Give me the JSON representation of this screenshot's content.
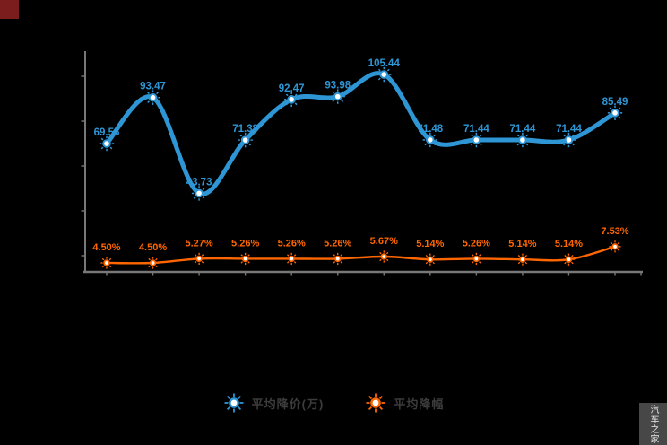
{
  "legend": {
    "items": [
      {
        "label": "平均降价(万)",
        "color": "#2E96D5"
      },
      {
        "label": "平均降幅",
        "color": "#FF6600"
      }
    ]
  },
  "watermark": {
    "text": "汽车之家"
  },
  "chart_data": {
    "type": "line",
    "x": [
      1,
      2,
      3,
      4,
      5,
      6,
      7,
      8,
      9,
      10,
      11,
      12
    ],
    "x_tick_labels": [],
    "grid": false,
    "legend_position": "bottom",
    "background": "#000000",
    "axis_color": "#787878",
    "series": [
      {
        "name": "平均降价(万)",
        "color": "#2E96D5",
        "values": [
          69.56,
          93.47,
          43.73,
          71.38,
          92.47,
          93.98,
          105.44,
          71.48,
          71.44,
          71.44,
          71.44,
          85.49
        ],
        "labels": [
          "69.56",
          "93.47",
          "43.73",
          "71.38",
          "92.47",
          "93.98",
          "105.44",
          "71.48",
          "71.44",
          "71.44",
          "71.44",
          "85.49"
        ]
      },
      {
        "name": "平均降幅",
        "color": "#FF6600",
        "values": [
          4.5,
          4.5,
          5.27,
          5.26,
          5.26,
          5.26,
          5.67,
          5.14,
          5.26,
          5.14,
          5.14,
          7.53
        ],
        "labels": [
          "4.50%",
          "4.50%",
          "5.27%",
          "5.26%",
          "5.26%",
          "5.26%",
          "5.67%",
          "5.14%",
          "5.26%",
          "5.14%",
          "5.14%",
          "7.53%"
        ]
      }
    ]
  }
}
